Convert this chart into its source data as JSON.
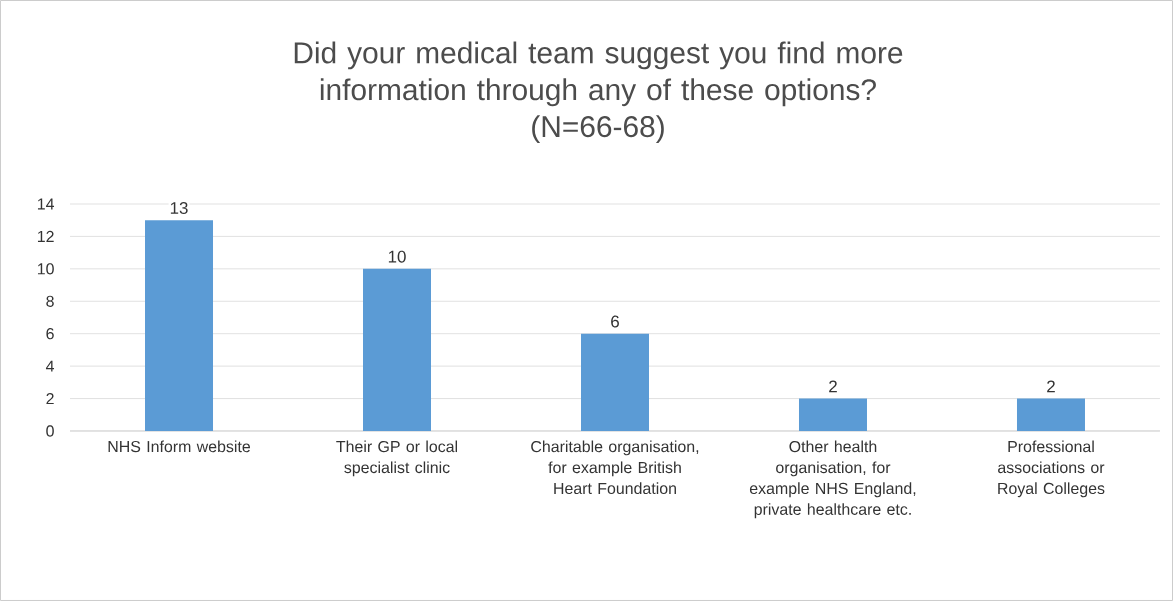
{
  "chart_data": {
    "type": "bar",
    "title": "Did your medical team suggest you find more information through any of these options?",
    "subtitle": "(N=66-68)",
    "categories": [
      "NHS Inform website",
      "Their GP or local specialist clinic",
      "Charitable organisation, for example British Heart Foundation",
      "Other health organisation, for example NHS England, private healthcare etc.",
      "Professional associations or Royal Colleges"
    ],
    "values": [
      13,
      10,
      6,
      2,
      2
    ],
    "color": "#5b9bd5",
    "ylim": [
      0,
      14
    ],
    "yticks": [
      0,
      2,
      4,
      6,
      8,
      10,
      12,
      14
    ],
    "grid": "y",
    "data_labels": true
  }
}
